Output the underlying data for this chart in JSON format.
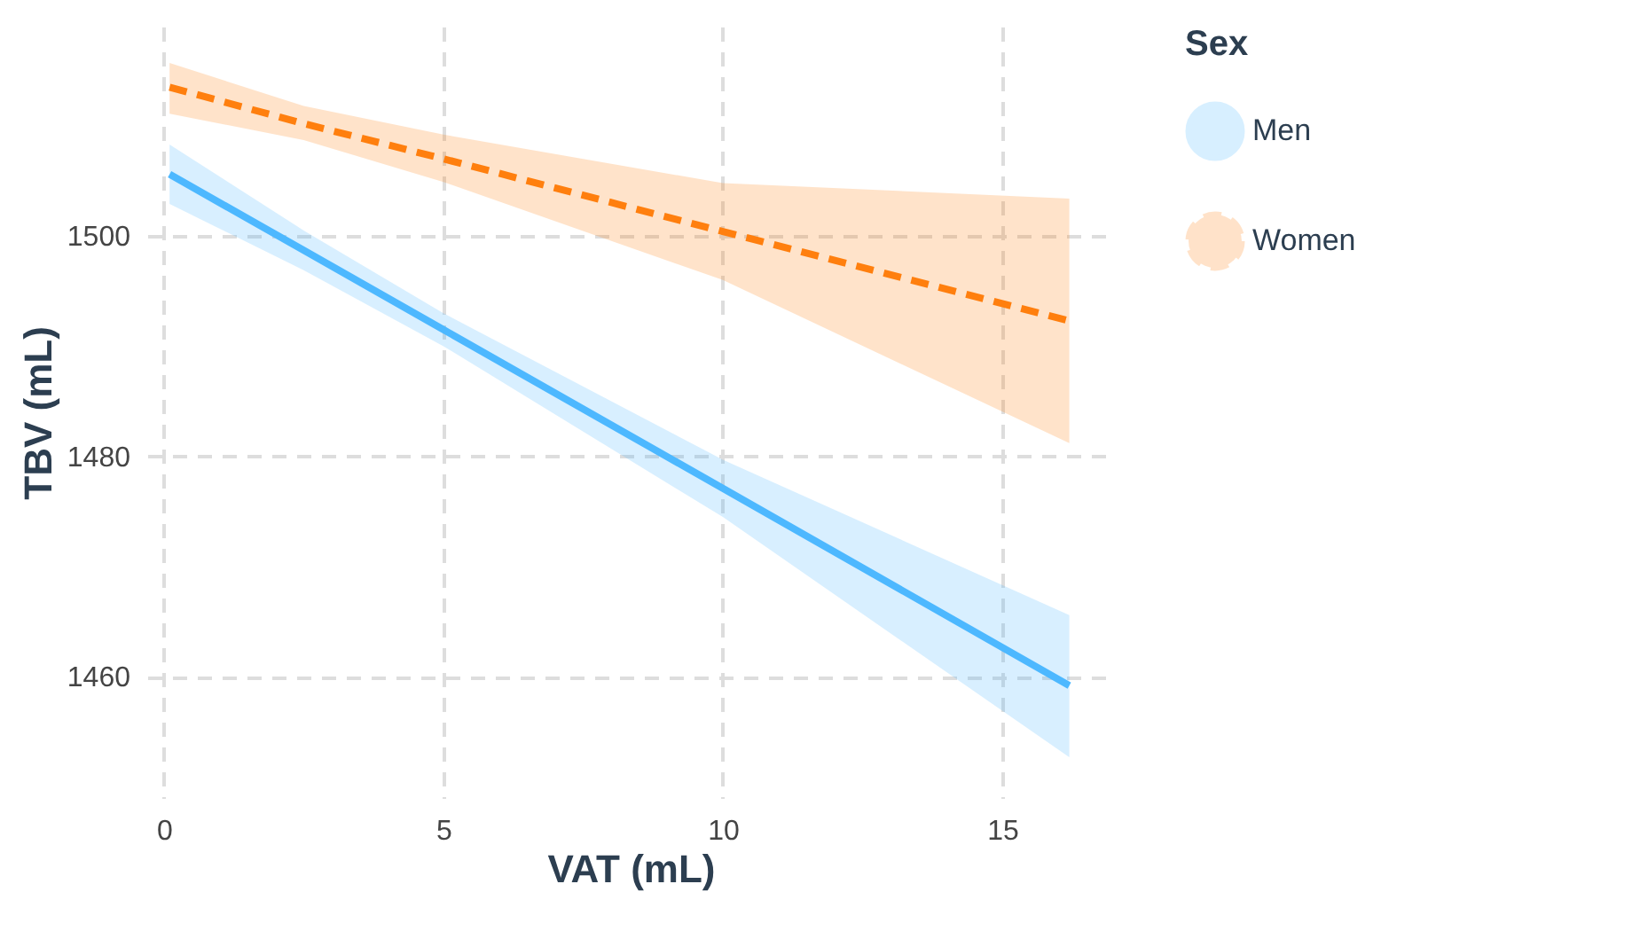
{
  "chart_data": {
    "type": "line",
    "xlabel": "VAT (mL)",
    "ylabel": "TBV (mL)",
    "legend_title": "Sex",
    "xlim": [
      -0.3,
      17
    ],
    "ylim": [
      1449,
      1519
    ],
    "xticks": [
      0,
      5,
      10,
      15
    ],
    "yticks": [
      1460,
      1480,
      1500
    ],
    "grid": true,
    "legend": "right",
    "series": [
      {
        "name": "Men",
        "color": "#4db8ff",
        "line_style": "solid",
        "x": [
          0.1,
          2.5,
          5,
          10,
          16.2
        ],
        "values": [
          1505.6,
          1498.7,
          1491.5,
          1477.1,
          1459.2
        ],
        "lower": [
          1502.9,
          1496.9,
          1490.0,
          1474.5,
          1452.7
        ],
        "upper": [
          1508.3,
          1500.5,
          1493.0,
          1479.7,
          1465.6
        ]
      },
      {
        "name": "Women",
        "color": "#ff7f0e",
        "line_style": "dashed",
        "x": [
          0.1,
          2.5,
          5,
          10,
          16.2
        ],
        "values": [
          1513.5,
          1510.2,
          1507.0,
          1500.4,
          1492.3
        ],
        "lower": [
          1511.1,
          1508.7,
          1504.9,
          1496.0,
          1481.2
        ],
        "upper": [
          1515.7,
          1511.8,
          1509.2,
          1504.8,
          1503.4
        ]
      }
    ]
  }
}
